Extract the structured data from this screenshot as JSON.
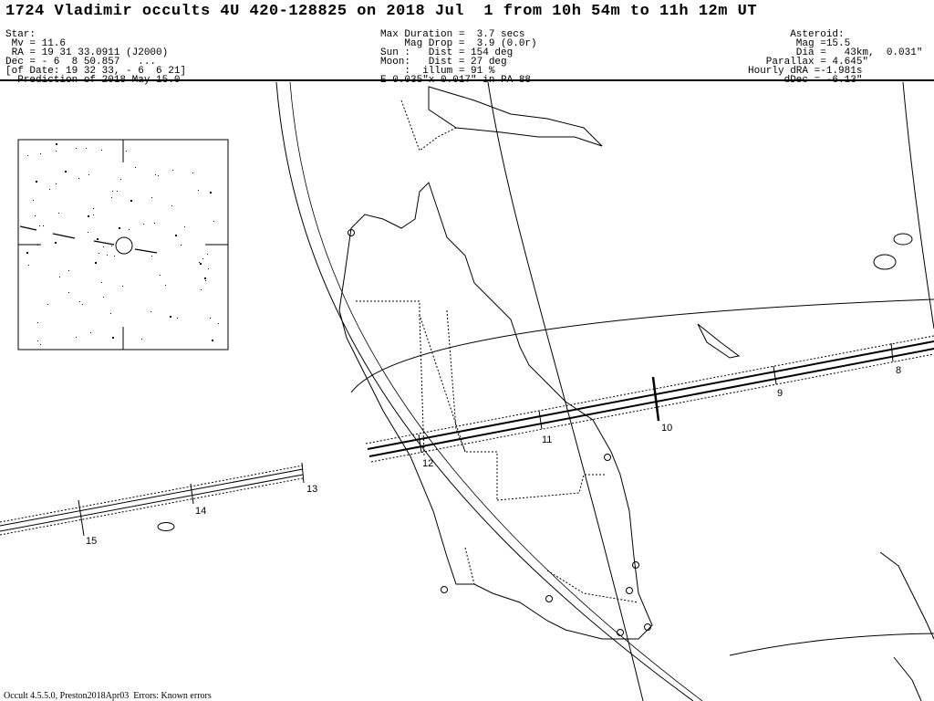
{
  "header": {
    "title": "1724 Vladimir occults 4U 420-128825 on 2018 Jul  1 from 10h 54m to 11h 12m UT",
    "star": [
      "Star:",
      " Mv = 11.6",
      " RA = 19 31 33.0911 (J2000)",
      "Dec = - 6  8 50.857   ...",
      "[of Date: 19 32 33, - 6  6 21]",
      "  Prediction of 2018 May 15.0"
    ],
    "event": [
      "Max Duration =  3.7 secs",
      "    Mag Drop =  3.9 (0.0r)",
      "Sun :   Dist = 154 deg",
      "Moon:   Dist = 27 deg",
      "    :  illum = 91 %",
      "E 0.035\"x 0.017\" in PA 88"
    ],
    "asteroid": [
      "       Asteroid:",
      "        Mag =15.5",
      "        Dia =   43km,  0.031\"",
      "   Parallax = 4.645\"",
      "Hourly dRA =-1.981s",
      "      dDec = -6.13\""
    ]
  },
  "time_labels": [
    "8",
    "9",
    "10",
    "11",
    "12",
    "13",
    "14",
    "15"
  ],
  "footer": "Occult 4.5.5.0, Preston2018Apr03  Errors: Known errors"
}
